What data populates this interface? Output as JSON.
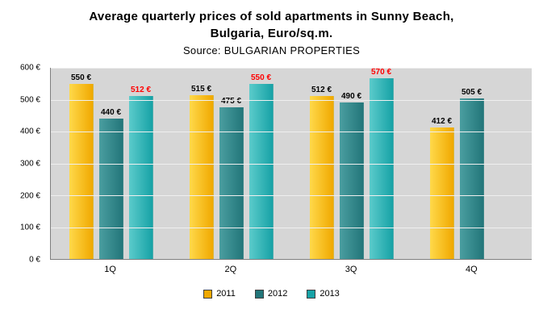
{
  "title": {
    "line1": "Average quarterly prices of sold apartments in Sunny Beach,",
    "line2": "Bulgaria, Euro/sq.m.",
    "source": "Source: BULGARIAN PROPERTIES"
  },
  "chart_data": {
    "type": "bar",
    "title": "Average quarterly prices of sold apartments in Sunny Beach, Bulgaria, Euro/sq.m.",
    "subtitle": "Source: BULGARIAN PROPERTIES",
    "categories": [
      "1Q",
      "2Q",
      "3Q",
      "4Q"
    ],
    "series": [
      {
        "name": "2011",
        "values": [
          550,
          515,
          512,
          412
        ],
        "color": "#f0a800",
        "color_light": "#ffd94a",
        "label_color": "#000000"
      },
      {
        "name": "2012",
        "values": [
          440,
          475,
          490,
          505
        ],
        "color": "#23767a",
        "color_light": "#4a9ea0",
        "label_color": "#000000"
      },
      {
        "name": "2013",
        "values": [
          512,
          550,
          570,
          null
        ],
        "color": "#17a2a6",
        "color_light": "#5bcbcb",
        "label_color": "#ff0000"
      }
    ],
    "value_suffix": " €",
    "ylim": [
      0,
      600
    ],
    "ytick_step": 100,
    "yticks": [
      "0 €",
      "100 €",
      "200 €",
      "300 €",
      "400 €",
      "500 €",
      "600 €"
    ],
    "grid": true,
    "plot_background": "#d6d6d6",
    "legend_position": "bottom"
  }
}
